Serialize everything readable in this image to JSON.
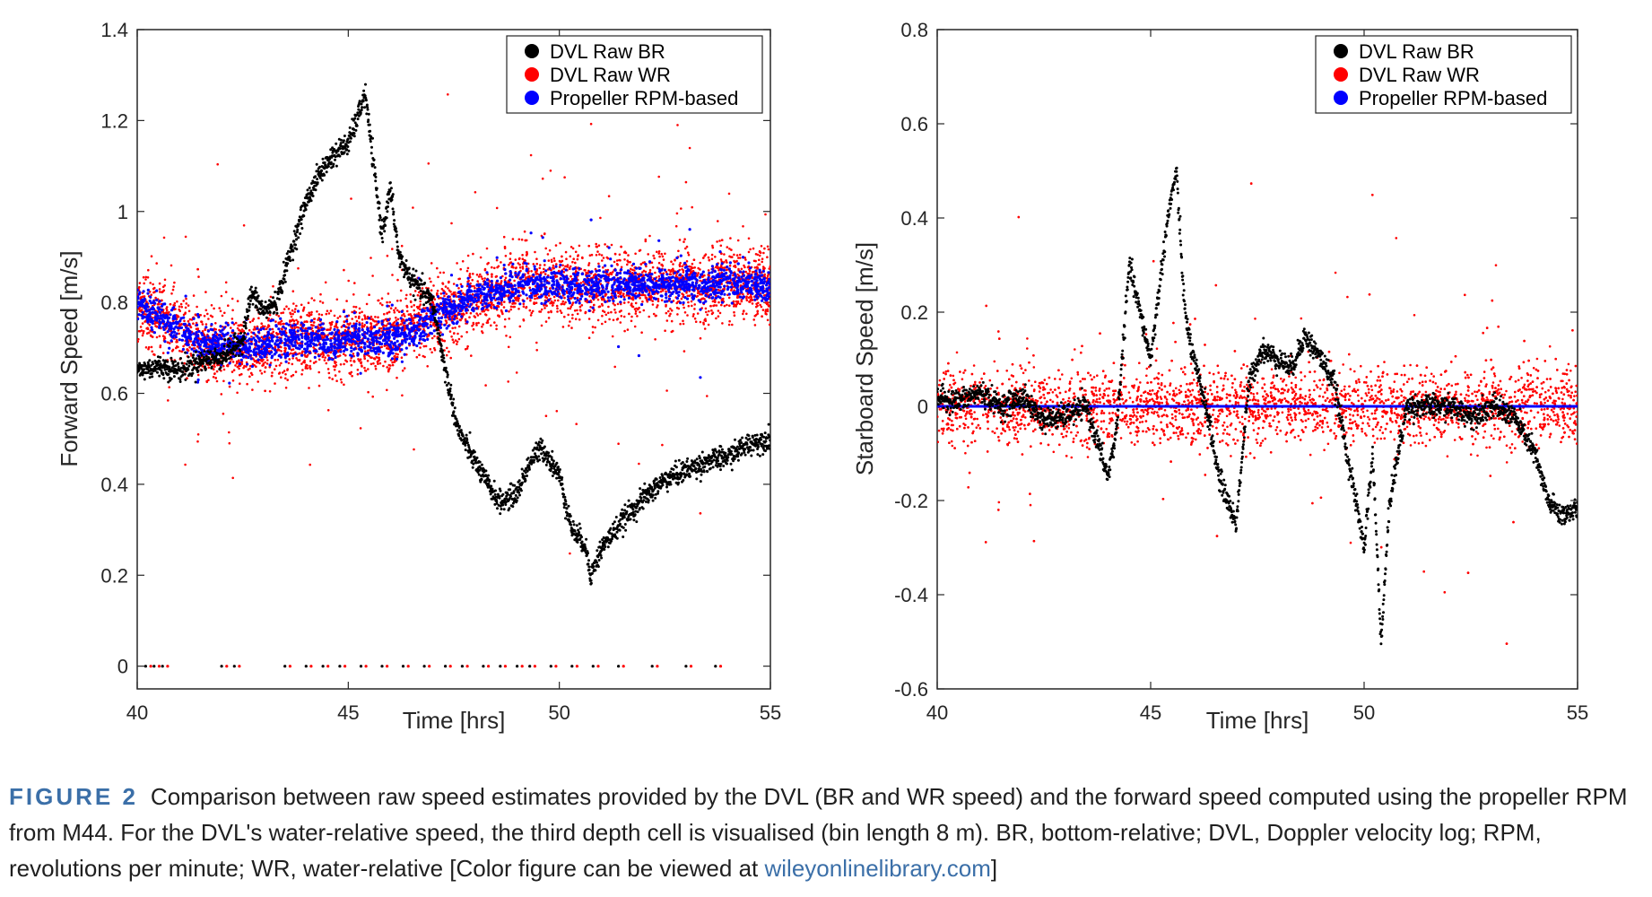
{
  "chart_data": [
    {
      "type": "scatter",
      "ylabel": "Forward Speed [m/s]",
      "xlabel": "Time [hrs]",
      "xlim": [
        40,
        55
      ],
      "ylim": [
        -0.05,
        1.4
      ],
      "xticks": [
        40,
        45,
        50,
        55
      ],
      "yticks": [
        0,
        0.2,
        0.4,
        0.6,
        0.8,
        1,
        1.2,
        1.4
      ],
      "xtick_labels": [
        "40",
        "45",
        "50",
        "55"
      ],
      "ytick_labels": [
        "0",
        "0.2",
        "0.4",
        "0.6",
        "0.8",
        "1",
        "1.2",
        "1.4"
      ],
      "legend_position": "top-right",
      "series": [
        {
          "name": "DVL Raw BR",
          "color": "#000000",
          "x": [
            40.0,
            40.5,
            41.0,
            41.5,
            42.0,
            42.3,
            42.5,
            42.7,
            43.0,
            43.3,
            43.6,
            44.0,
            44.3,
            44.6,
            45.0,
            45.2,
            45.4,
            45.6,
            45.8,
            46.0,
            46.2,
            46.5,
            47.0,
            47.3,
            47.6,
            48.0,
            48.3,
            48.6,
            49.0,
            49.3,
            49.6,
            50.0,
            50.3,
            50.6,
            50.75,
            51.0,
            51.5,
            52.0,
            52.5,
            53.0,
            53.5,
            54.0,
            54.5,
            55.0
          ],
          "y": [
            0.65,
            0.66,
            0.65,
            0.67,
            0.68,
            0.7,
            0.72,
            0.82,
            0.78,
            0.8,
            0.9,
            1.02,
            1.08,
            1.12,
            1.15,
            1.2,
            1.26,
            1.1,
            0.95,
            1.05,
            0.9,
            0.85,
            0.8,
            0.65,
            0.52,
            0.45,
            0.4,
            0.36,
            0.38,
            0.45,
            0.48,
            0.42,
            0.3,
            0.27,
            0.2,
            0.26,
            0.32,
            0.37,
            0.41,
            0.43,
            0.45,
            0.46,
            0.49,
            0.5
          ],
          "zero_points_x": [
            40.2,
            40.4,
            40.6,
            42.0,
            42.3,
            43.5,
            44.0,
            44.4,
            44.8,
            45.3,
            45.8,
            46.3,
            46.8,
            47.3,
            47.7,
            48.2,
            48.6,
            49.0,
            49.3,
            49.8,
            50.3,
            50.8,
            51.4,
            52.2,
            53.0,
            53.7
          ]
        },
        {
          "name": "DVL Raw WR",
          "color": "#ff0000",
          "x": [
            40.0,
            40.5,
            41.0,
            41.5,
            42.0,
            42.5,
            43.0,
            43.5,
            44.0,
            44.5,
            45.0,
            45.5,
            46.0,
            46.5,
            47.0,
            47.5,
            48.0,
            48.5,
            49.0,
            49.5,
            50.0,
            50.5,
            51.0,
            51.5,
            52.0,
            52.5,
            53.0,
            53.5,
            54.0,
            54.5,
            55.0
          ],
          "y": [
            0.79,
            0.77,
            0.74,
            0.71,
            0.7,
            0.7,
            0.71,
            0.72,
            0.72,
            0.71,
            0.72,
            0.72,
            0.73,
            0.75,
            0.77,
            0.79,
            0.8,
            0.82,
            0.84,
            0.84,
            0.84,
            0.83,
            0.84,
            0.84,
            0.84,
            0.84,
            0.84,
            0.84,
            0.84,
            0.84,
            0.83
          ],
          "spread": 0.07
        },
        {
          "name": "Propeller RPM-based",
          "color": "#0000ff",
          "x": [
            40.0,
            40.5,
            41.0,
            41.5,
            42.0,
            42.5,
            43.0,
            43.5,
            44.0,
            44.5,
            45.0,
            45.5,
            46.0,
            46.5,
            47.0,
            47.5,
            48.0,
            48.5,
            49.0,
            49.5,
            50.0,
            50.5,
            51.0,
            51.5,
            52.0,
            52.5,
            53.0,
            53.5,
            54.0,
            54.5,
            55.0
          ],
          "y": [
            0.8,
            0.77,
            0.74,
            0.71,
            0.71,
            0.7,
            0.71,
            0.72,
            0.72,
            0.71,
            0.72,
            0.72,
            0.72,
            0.73,
            0.77,
            0.79,
            0.81,
            0.82,
            0.84,
            0.84,
            0.84,
            0.83,
            0.84,
            0.84,
            0.84,
            0.84,
            0.84,
            0.84,
            0.84,
            0.84,
            0.83
          ]
        }
      ]
    },
    {
      "type": "scatter",
      "ylabel": "Starboard Speed [m/s]",
      "xlabel": "Time [hrs]",
      "xlim": [
        40,
        55
      ],
      "ylim": [
        -0.6,
        0.8
      ],
      "xticks": [
        40,
        45,
        50,
        55
      ],
      "yticks": [
        -0.6,
        -0.4,
        -0.2,
        0,
        0.2,
        0.4,
        0.6,
        0.8
      ],
      "xtick_labels": [
        "40",
        "45",
        "50",
        "55"
      ],
      "ytick_labels": [
        "-0.6",
        "-0.4",
        "-0.2",
        "0",
        "0.2",
        "0.4",
        "0.6",
        "0.8"
      ],
      "legend_position": "top-right",
      "series": [
        {
          "name": "DVL Raw BR",
          "color": "#000000",
          "x": [
            40.0,
            40.5,
            41.0,
            41.5,
            42.0,
            42.5,
            43.0,
            43.5,
            44.0,
            44.2,
            44.5,
            44.7,
            45.0,
            45.2,
            45.4,
            45.6,
            45.8,
            46.0,
            46.3,
            46.6,
            47.0,
            47.3,
            47.6,
            48.0,
            48.3,
            48.6,
            49.0,
            49.3,
            49.6,
            49.8,
            50.0,
            50.2,
            50.4,
            50.6,
            51.0,
            51.5,
            52.0,
            52.5,
            53.0,
            53.5,
            54.0,
            54.3,
            54.6,
            55.0
          ],
          "y": [
            0.02,
            0.01,
            0.03,
            0.0,
            0.02,
            -0.03,
            -0.02,
            0.0,
            -0.15,
            -0.05,
            0.3,
            0.22,
            0.1,
            0.25,
            0.4,
            0.5,
            0.2,
            0.1,
            0.0,
            -0.15,
            -0.25,
            0.05,
            0.12,
            0.1,
            0.08,
            0.15,
            0.1,
            0.05,
            -0.1,
            -0.2,
            -0.3,
            -0.1,
            -0.5,
            -0.2,
            0.0,
            0.0,
            0.0,
            -0.02,
            0.0,
            -0.02,
            -0.1,
            -0.2,
            -0.23,
            -0.22
          ]
        },
        {
          "name": "DVL Raw WR",
          "color": "#ff0000",
          "x": [
            40.0,
            55.0
          ],
          "y": [
            0.0,
            0.0
          ],
          "spread": 0.07
        },
        {
          "name": "Propeller RPM-based",
          "color": "#0000ff",
          "x": [
            40.0,
            55.0
          ],
          "y": [
            0.0,
            0.0
          ]
        }
      ]
    }
  ],
  "caption": {
    "label": "FIGURE 2",
    "text": "Comparison between raw speed estimates provided by the DVL (BR and WR speed) and the forward speed computed using the propeller RPM from M44. For the DVL's water-relative speed, the third depth cell is visualised (bin length 8 m). BR, bottom-relative; DVL, Doppler velocity log; RPM, revolutions per minute; WR, water-relative [Color figure can be viewed at ",
    "link": "wileyonlinelibrary.com",
    "end": "]"
  }
}
